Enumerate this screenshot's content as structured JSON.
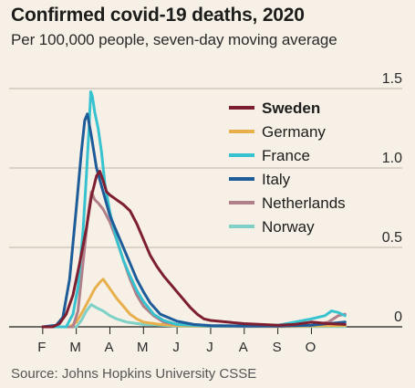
{
  "title": "Confirmed covid-19 deaths, 2020",
  "subtitle": "Per 100,000 people, seven-day moving average",
  "source": "Source: Johns Hopkins University CSSE",
  "chart_data": {
    "type": "line",
    "title": "Confirmed covid-19 deaths, 2020",
    "subtitle": "Per 100,000 people, seven-day moving average",
    "ylim": [
      0,
      1.5
    ],
    "y_ticks": [
      "0",
      "0.5",
      "1.0",
      "1.5"
    ],
    "x_ticks": [
      "F",
      "M",
      "A",
      "M",
      "J",
      "J",
      "A",
      "S",
      "O"
    ],
    "x_domain_months": [
      0,
      10.4
    ],
    "grid": true,
    "legend_position": "top-right",
    "series": [
      {
        "name": "Sweden",
        "color": "#7e1f31",
        "bold": true,
        "points": [
          [
            1.0,
            0
          ],
          [
            1.3,
            0
          ],
          [
            1.5,
            0.02
          ],
          [
            1.7,
            0.08
          ],
          [
            1.9,
            0.2
          ],
          [
            2.1,
            0.4
          ],
          [
            2.3,
            0.62
          ],
          [
            2.45,
            0.82
          ],
          [
            2.6,
            0.95
          ],
          [
            2.7,
            0.98
          ],
          [
            2.8,
            0.92
          ],
          [
            2.9,
            0.85
          ],
          [
            3.0,
            0.83
          ],
          [
            3.2,
            0.8
          ],
          [
            3.4,
            0.77
          ],
          [
            3.6,
            0.73
          ],
          [
            3.8,
            0.65
          ],
          [
            4.0,
            0.55
          ],
          [
            4.2,
            0.45
          ],
          [
            4.4,
            0.38
          ],
          [
            4.6,
            0.32
          ],
          [
            4.8,
            0.27
          ],
          [
            5.0,
            0.22
          ],
          [
            5.2,
            0.17
          ],
          [
            5.4,
            0.12
          ],
          [
            5.6,
            0.08
          ],
          [
            5.8,
            0.05
          ],
          [
            6.0,
            0.04
          ],
          [
            6.5,
            0.03
          ],
          [
            7.0,
            0.02
          ],
          [
            7.5,
            0.015
          ],
          [
            8.0,
            0.01
          ],
          [
            8.5,
            0.015
          ],
          [
            9.0,
            0.03
          ],
          [
            9.5,
            0.02
          ],
          [
            10.0,
            0.015
          ]
        ]
      },
      {
        "name": "Germany",
        "color": "#e8b04d",
        "bold": false,
        "points": [
          [
            1.0,
            0
          ],
          [
            1.8,
            0
          ],
          [
            2.0,
            0.03
          ],
          [
            2.2,
            0.1
          ],
          [
            2.4,
            0.18
          ],
          [
            2.55,
            0.24
          ],
          [
            2.7,
            0.28
          ],
          [
            2.8,
            0.3
          ],
          [
            2.9,
            0.27
          ],
          [
            3.0,
            0.24
          ],
          [
            3.2,
            0.18
          ],
          [
            3.4,
            0.13
          ],
          [
            3.6,
            0.08
          ],
          [
            3.8,
            0.05
          ],
          [
            4.0,
            0.03
          ],
          [
            4.5,
            0.015
          ],
          [
            5.0,
            0.008
          ],
          [
            6.0,
            0.003
          ],
          [
            8.0,
            0.002
          ],
          [
            9.0,
            0.005
          ],
          [
            10.0,
            0.008
          ]
        ]
      },
      {
        "name": "France",
        "color": "#36c3cf",
        "bold": false,
        "points": [
          [
            1.0,
            0
          ],
          [
            1.7,
            0
          ],
          [
            1.9,
            0.08
          ],
          [
            2.05,
            0.25
          ],
          [
            2.2,
            0.6
          ],
          [
            2.3,
            0.95
          ],
          [
            2.38,
            1.25
          ],
          [
            2.43,
            1.48
          ],
          [
            2.48,
            1.45
          ],
          [
            2.55,
            1.35
          ],
          [
            2.65,
            1.25
          ],
          [
            2.75,
            1.1
          ],
          [
            2.85,
            0.9
          ],
          [
            3.0,
            0.72
          ],
          [
            3.2,
            0.55
          ],
          [
            3.4,
            0.42
          ],
          [
            3.6,
            0.32
          ],
          [
            3.8,
            0.23
          ],
          [
            4.0,
            0.16
          ],
          [
            4.3,
            0.08
          ],
          [
            4.6,
            0.04
          ],
          [
            5.0,
            0.015
          ],
          [
            6.0,
            0.005
          ],
          [
            7.0,
            0.005
          ],
          [
            8.0,
            0.01
          ],
          [
            8.5,
            0.03
          ],
          [
            9.0,
            0.05
          ],
          [
            9.4,
            0.07
          ],
          [
            9.6,
            0.1
          ],
          [
            9.8,
            0.09
          ],
          [
            10.0,
            0.07
          ]
        ]
      },
      {
        "name": "Italy",
        "color": "#1e5c99",
        "bold": false,
        "points": [
          [
            1.0,
            0
          ],
          [
            1.4,
            0.01
          ],
          [
            1.6,
            0.06
          ],
          [
            1.8,
            0.3
          ],
          [
            2.0,
            0.75
          ],
          [
            2.15,
            1.1
          ],
          [
            2.25,
            1.3
          ],
          [
            2.33,
            1.34
          ],
          [
            2.45,
            1.2
          ],
          [
            2.6,
            1.0
          ],
          [
            2.8,
            0.85
          ],
          [
            3.0,
            0.7
          ],
          [
            3.2,
            0.6
          ],
          [
            3.4,
            0.5
          ],
          [
            3.6,
            0.4
          ],
          [
            3.8,
            0.3
          ],
          [
            4.0,
            0.22
          ],
          [
            4.2,
            0.15
          ],
          [
            4.5,
            0.08
          ],
          [
            5.0,
            0.035
          ],
          [
            5.5,
            0.015
          ],
          [
            6.0,
            0.008
          ],
          [
            7.0,
            0.005
          ],
          [
            8.0,
            0.005
          ],
          [
            9.0,
            0.01
          ],
          [
            10.0,
            0.03
          ]
        ]
      },
      {
        "name": "Netherlands",
        "color": "#b07f8a",
        "bold": false,
        "points": [
          [
            1.0,
            0
          ],
          [
            1.9,
            0
          ],
          [
            2.05,
            0.1
          ],
          [
            2.2,
            0.4
          ],
          [
            2.35,
            0.7
          ],
          [
            2.45,
            0.85
          ],
          [
            2.55,
            0.8
          ],
          [
            2.65,
            0.78
          ],
          [
            2.8,
            0.74
          ],
          [
            3.0,
            0.66
          ],
          [
            3.2,
            0.55
          ],
          [
            3.4,
            0.42
          ],
          [
            3.6,
            0.3
          ],
          [
            3.8,
            0.2
          ],
          [
            4.0,
            0.13
          ],
          [
            4.3,
            0.07
          ],
          [
            4.6,
            0.03
          ],
          [
            5.0,
            0.015
          ],
          [
            6.0,
            0.003
          ],
          [
            8.0,
            0.003
          ],
          [
            9.0,
            0.01
          ],
          [
            9.5,
            0.03
          ],
          [
            9.8,
            0.07
          ],
          [
            10.0,
            0.08
          ]
        ]
      },
      {
        "name": "Norway",
        "color": "#7fd1c7",
        "bold": false,
        "points": [
          [
            1.0,
            0
          ],
          [
            2.0,
            0
          ],
          [
            2.15,
            0.04
          ],
          [
            2.3,
            0.1
          ],
          [
            2.45,
            0.14
          ],
          [
            2.6,
            0.12
          ],
          [
            2.8,
            0.1
          ],
          [
            3.0,
            0.07
          ],
          [
            3.2,
            0.05
          ],
          [
            3.5,
            0.03
          ],
          [
            4.0,
            0.015
          ],
          [
            5.0,
            0.005
          ],
          [
            7.0,
            0.002
          ],
          [
            10.0,
            0.002
          ]
        ]
      }
    ]
  }
}
